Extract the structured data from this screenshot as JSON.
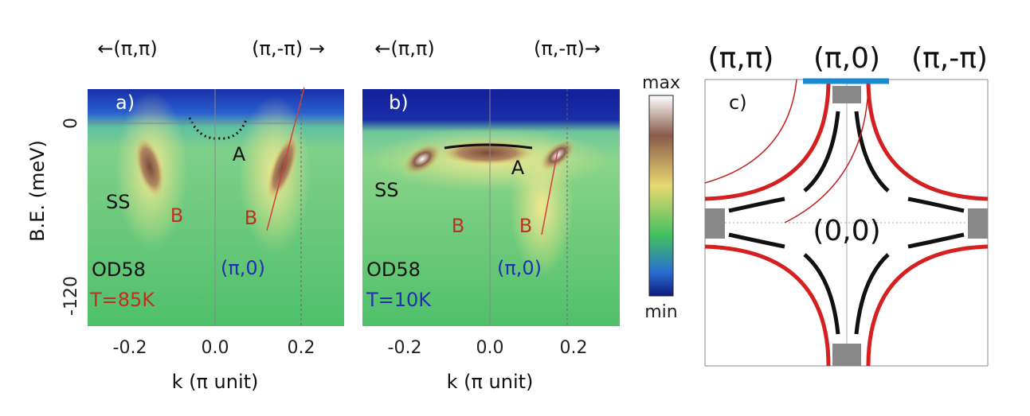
{
  "top_labels": {
    "a_left": "←(π,π)",
    "a_right": "(π,-π) →",
    "b_left": "←(π,π)",
    "b_right": "(π,-π)→"
  },
  "y_axis": {
    "label": "B.E. (meV)",
    "ticks": [
      "0",
      "-120"
    ]
  },
  "panel_a": {
    "label": "a)",
    "x_ticks": [
      "-0.2",
      "0.0",
      "0.2"
    ],
    "x_label": "k (π unit)",
    "ss": "SS",
    "b_left": "B",
    "b_right": "B",
    "a": "A",
    "sample": "OD58",
    "temperature": "T=85K",
    "point": "(π,0)"
  },
  "panel_b": {
    "label": "b)",
    "x_ticks": [
      "-0.2",
      "0.0",
      "0.2"
    ],
    "x_label": "k (π unit)",
    "ss": "SS",
    "b_left": "B",
    "b_right": "B",
    "a": "A",
    "sample": "OD58",
    "temperature": "T=10K",
    "point": "(π,0)"
  },
  "colorbar": {
    "max": "max",
    "min": "min"
  },
  "panel_c": {
    "label": "c)",
    "corner_left": "(π,π)",
    "corner_mid": "(π,0)",
    "corner_right": "(π,-π)",
    "center": "(0,0)"
  }
}
